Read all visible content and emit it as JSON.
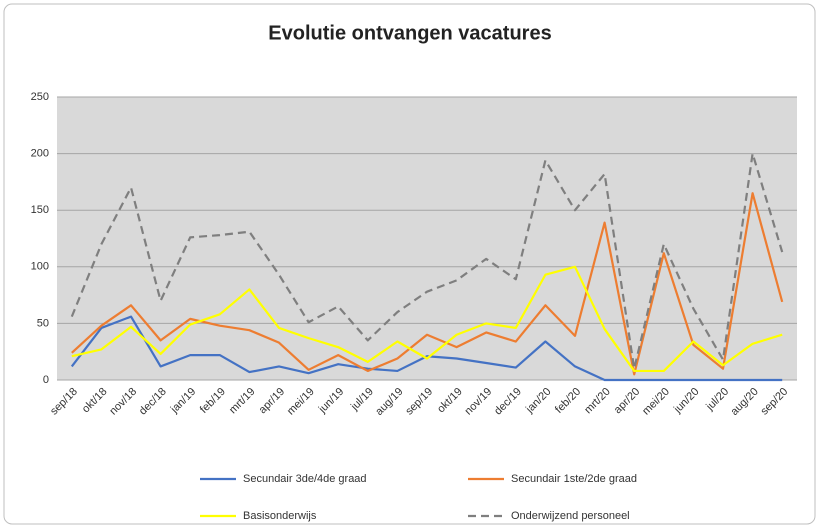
{
  "chart_data": {
    "type": "line",
    "title": "Evolutie ontvangen vacatures",
    "categories": [
      "sep/18",
      "okt/18",
      "nov/18",
      "dec/18",
      "jan/19",
      "feb/19",
      "mrt/19",
      "apr/19",
      "mei/19",
      "jun/19",
      "jul/19",
      "aug/19",
      "sep/19",
      "okt/19",
      "nov/19",
      "dec/19",
      "jan/20",
      "feb/20",
      "mrt/20",
      "apr/20",
      "mei/20",
      "jun/20",
      "jul/20",
      "aug/20",
      "sep/20"
    ],
    "series": [
      {
        "name": "Secundair 3de/4de graad",
        "color": "#4472c4",
        "dash": false,
        "values": [
          12,
          46,
          56,
          12,
          22,
          22,
          7,
          12,
          6,
          14,
          10,
          8,
          21,
          19,
          15,
          11,
          34,
          12,
          0,
          0,
          0,
          0,
          0,
          0,
          0
        ]
      },
      {
        "name": "Secundair 1ste/2de graad",
        "color": "#ed7d31",
        "dash": false,
        "values": [
          24,
          48,
          66,
          35,
          54,
          48,
          44,
          33,
          9,
          22,
          8,
          19,
          40,
          29,
          42,
          34,
          66,
          39,
          139,
          5,
          112,
          31,
          10,
          165,
          69
        ]
      },
      {
        "name": "Basisonderwijs",
        "color": "#ffff00",
        "dash": false,
        "values": [
          21,
          27,
          47,
          23,
          49,
          58,
          80,
          46,
          37,
          29,
          16,
          34,
          19,
          40,
          50,
          46,
          93,
          100,
          45,
          8,
          8,
          34,
          13,
          32,
          40
        ]
      },
      {
        "name": "Onderwijzend personeel",
        "color": "#7f7f7f",
        "dash": true,
        "values": [
          56,
          120,
          170,
          70,
          126,
          128,
          131,
          93,
          51,
          65,
          35,
          60,
          78,
          88,
          107,
          89,
          194,
          150,
          182,
          10,
          120,
          63,
          18,
          200,
          113
        ]
      }
    ],
    "ylim": [
      0,
      250
    ],
    "yticks": [
      0,
      50,
      100,
      150,
      200,
      250
    ],
    "grid": true
  }
}
